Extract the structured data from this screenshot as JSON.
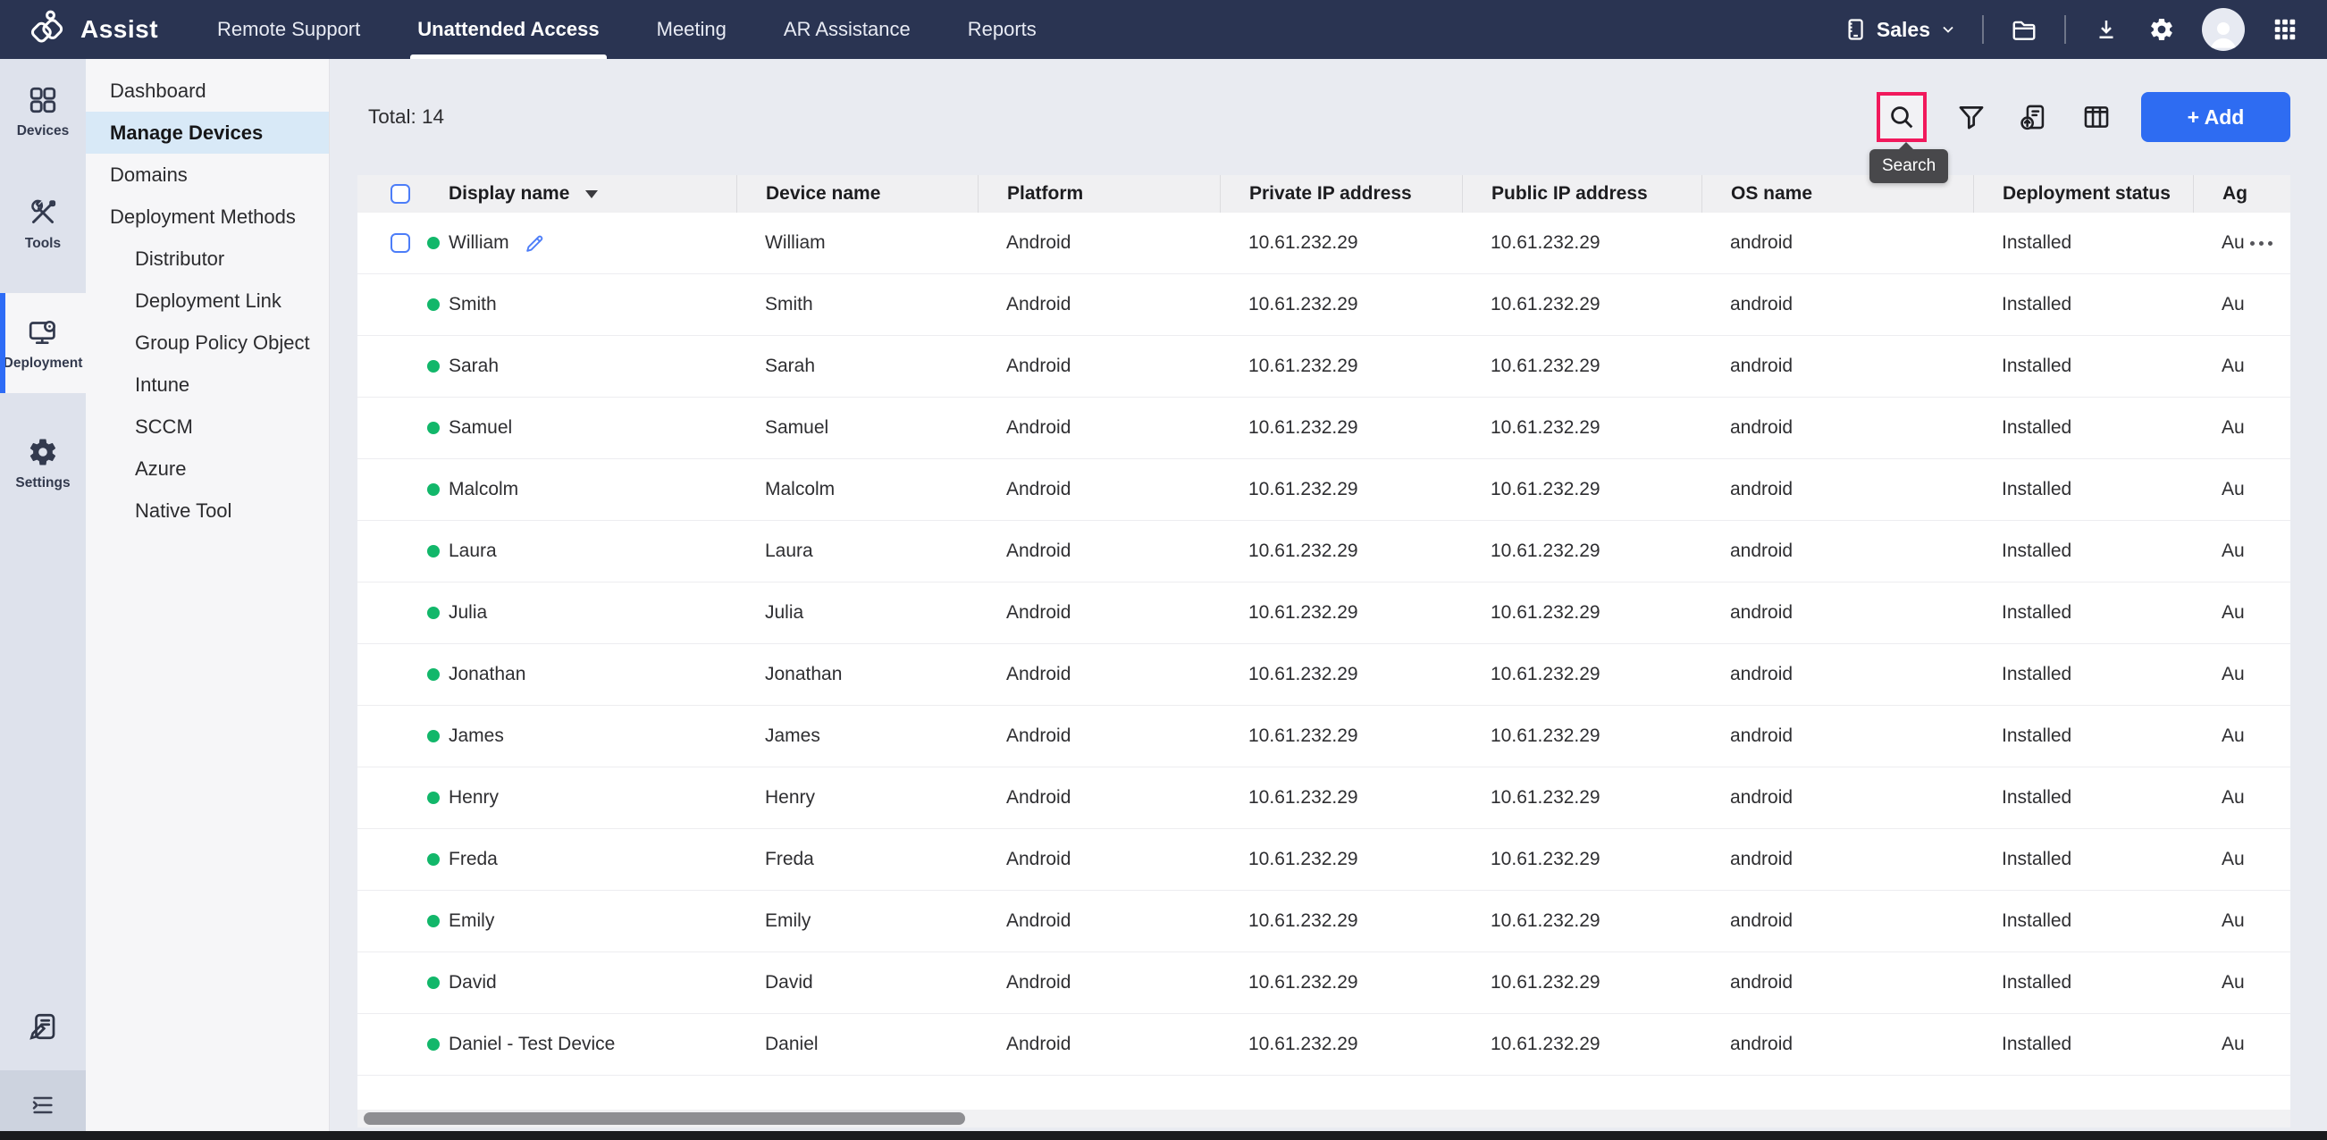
{
  "app": {
    "title": "Assist"
  },
  "topnav": {
    "tabs": [
      {
        "label": "Remote Support",
        "active": false
      },
      {
        "label": "Unattended Access",
        "active": true
      },
      {
        "label": "Meeting",
        "active": false
      },
      {
        "label": "AR Assistance",
        "active": false
      },
      {
        "label": "Reports",
        "active": false
      }
    ],
    "org_label": "Sales"
  },
  "rail": {
    "items": [
      {
        "label": "Devices",
        "icon": "devices",
        "active": false
      },
      {
        "label": "Tools",
        "icon": "tools",
        "active": false
      },
      {
        "label": "Deployment",
        "icon": "deployment",
        "active": true
      },
      {
        "label": "Settings",
        "icon": "settings",
        "active": false
      }
    ]
  },
  "sidebar": {
    "items": [
      {
        "label": "Dashboard",
        "active": false,
        "sub": false
      },
      {
        "label": "Manage Devices",
        "active": true,
        "sub": false
      },
      {
        "label": "Domains",
        "active": false,
        "sub": false
      },
      {
        "label": "Deployment Methods",
        "active": false,
        "sub": false
      },
      {
        "label": "Distributor",
        "active": false,
        "sub": true
      },
      {
        "label": "Deployment Link",
        "active": false,
        "sub": true
      },
      {
        "label": "Group Policy Object",
        "active": false,
        "sub": true
      },
      {
        "label": "Intune",
        "active": false,
        "sub": true
      },
      {
        "label": "SCCM",
        "active": false,
        "sub": true
      },
      {
        "label": "Azure",
        "active": false,
        "sub": true
      },
      {
        "label": "Native Tool",
        "active": false,
        "sub": true
      }
    ]
  },
  "toolbar": {
    "total_label": "Total: 14",
    "add_label": "+ Add",
    "search_tooltip": "Search",
    "icons": [
      "search-icon",
      "filter-icon",
      "deploy-icon",
      "manage-columns-icon"
    ]
  },
  "table": {
    "columns": [
      "Display name",
      "Device name",
      "Platform",
      "Private IP address",
      "Public IP address",
      "OS name",
      "Deployment status",
      "Ag"
    ],
    "rows": [
      {
        "display_name": "William",
        "device_name": "William",
        "platform": "Android",
        "private_ip": "10.61.232.29",
        "public_ip": "10.61.232.29",
        "os_name": "android",
        "deployment_status": "Installed",
        "agent": "Au",
        "status": "online",
        "hovered": true
      },
      {
        "display_name": "Smith",
        "device_name": "Smith",
        "platform": "Android",
        "private_ip": "10.61.232.29",
        "public_ip": "10.61.232.29",
        "os_name": "android",
        "deployment_status": "Installed",
        "agent": "Au",
        "status": "online",
        "hovered": false
      },
      {
        "display_name": "Sarah",
        "device_name": "Sarah",
        "platform": "Android",
        "private_ip": "10.61.232.29",
        "public_ip": "10.61.232.29",
        "os_name": "android",
        "deployment_status": "Installed",
        "agent": "Au",
        "status": "online",
        "hovered": false
      },
      {
        "display_name": "Samuel",
        "device_name": "Samuel",
        "platform": "Android",
        "private_ip": "10.61.232.29",
        "public_ip": "10.61.232.29",
        "os_name": "android",
        "deployment_status": "Installed",
        "agent": "Au",
        "status": "online",
        "hovered": false
      },
      {
        "display_name": "Malcolm",
        "device_name": "Malcolm",
        "platform": "Android",
        "private_ip": "10.61.232.29",
        "public_ip": "10.61.232.29",
        "os_name": "android",
        "deployment_status": "Installed",
        "agent": "Au",
        "status": "online",
        "hovered": false
      },
      {
        "display_name": "Laura",
        "device_name": "Laura",
        "platform": "Android",
        "private_ip": "10.61.232.29",
        "public_ip": "10.61.232.29",
        "os_name": "android",
        "deployment_status": "Installed",
        "agent": "Au",
        "status": "online",
        "hovered": false
      },
      {
        "display_name": "Julia",
        "device_name": "Julia",
        "platform": "Android",
        "private_ip": "10.61.232.29",
        "public_ip": "10.61.232.29",
        "os_name": "android",
        "deployment_status": "Installed",
        "agent": "Au",
        "status": "online",
        "hovered": false
      },
      {
        "display_name": "Jonathan",
        "device_name": "Jonathan",
        "platform": "Android",
        "private_ip": "10.61.232.29",
        "public_ip": "10.61.232.29",
        "os_name": "android",
        "deployment_status": "Installed",
        "agent": "Au",
        "status": "online",
        "hovered": false
      },
      {
        "display_name": "James",
        "device_name": "James",
        "platform": "Android",
        "private_ip": "10.61.232.29",
        "public_ip": "10.61.232.29",
        "os_name": "android",
        "deployment_status": "Installed",
        "agent": "Au",
        "status": "online",
        "hovered": false
      },
      {
        "display_name": "Henry",
        "device_name": "Henry",
        "platform": "Android",
        "private_ip": "10.61.232.29",
        "public_ip": "10.61.232.29",
        "os_name": "android",
        "deployment_status": "Installed",
        "agent": "Au",
        "status": "online",
        "hovered": false
      },
      {
        "display_name": "Freda",
        "device_name": "Freda",
        "platform": "Android",
        "private_ip": "10.61.232.29",
        "public_ip": "10.61.232.29",
        "os_name": "android",
        "deployment_status": "Installed",
        "agent": "Au",
        "status": "online",
        "hovered": false
      },
      {
        "display_name": "Emily",
        "device_name": "Emily",
        "platform": "Android",
        "private_ip": "10.61.232.29",
        "public_ip": "10.61.232.29",
        "os_name": "android",
        "deployment_status": "Installed",
        "agent": "Au",
        "status": "online",
        "hovered": false
      },
      {
        "display_name": "David",
        "device_name": "David",
        "platform": "Android",
        "private_ip": "10.61.232.29",
        "public_ip": "10.61.232.29",
        "os_name": "android",
        "deployment_status": "Installed",
        "agent": "Au",
        "status": "online",
        "hovered": false
      },
      {
        "display_name": "Daniel - Test Device",
        "device_name": "Daniel",
        "platform": "Android",
        "private_ip": "10.61.232.29",
        "public_ip": "10.61.232.29",
        "os_name": "android",
        "deployment_status": "Installed",
        "agent": "Au",
        "status": "online",
        "hovered": false
      }
    ]
  },
  "colors": {
    "nav_bg": "#2a3452",
    "accent_blue": "#2e6cf2",
    "highlight_pink": "#f1195c",
    "status_green": "#12b76a",
    "active_sidebar_bg": "#d8e9f7"
  }
}
